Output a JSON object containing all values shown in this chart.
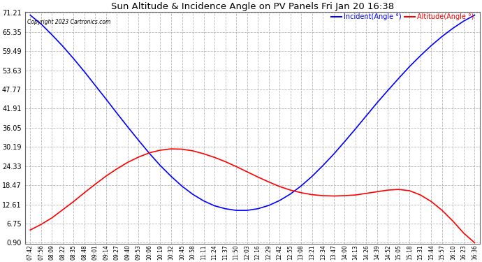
{
  "title": "Sun Altitude & Incidence Angle on PV Panels Fri Jan 20 16:38",
  "copyright": "Copyright 2023 Cartronics.com",
  "legend_incident": "Incident(Angle °)",
  "legend_altitude": "Altitude(Angle °)",
  "plot_bg_color": "#ffffff",
  "grid_color": "#b0b0b0",
  "title_color": "#000000",
  "copyright_color": "#000000",
  "ymin": 0.9,
  "ymax": 71.21,
  "yticks": [
    0.9,
    6.75,
    12.61,
    18.47,
    24.33,
    30.19,
    36.05,
    41.91,
    47.77,
    53.63,
    59.49,
    65.35,
    71.21
  ],
  "time_labels": [
    "07:42",
    "07:56",
    "08:09",
    "08:22",
    "08:35",
    "08:48",
    "09:01",
    "09:14",
    "09:27",
    "09:40",
    "09:53",
    "10:06",
    "10:19",
    "10:32",
    "10:45",
    "10:58",
    "11:11",
    "11:24",
    "11:37",
    "11:50",
    "12:03",
    "12:16",
    "12:29",
    "12:42",
    "12:55",
    "13:08",
    "13:21",
    "13:34",
    "13:47",
    "14:00",
    "14:13",
    "14:26",
    "14:39",
    "14:52",
    "15:05",
    "15:18",
    "15:31",
    "15:44",
    "15:57",
    "16:10",
    "16:23",
    "16:36"
  ],
  "altitude_values": [
    70.5,
    67.8,
    64.5,
    61.0,
    57.2,
    53.2,
    49.0,
    44.8,
    40.5,
    36.3,
    32.2,
    28.2,
    24.5,
    21.2,
    18.2,
    15.7,
    13.7,
    12.2,
    11.3,
    10.8,
    10.8,
    11.3,
    12.3,
    13.8,
    15.8,
    18.3,
    21.2,
    24.5,
    28.0,
    31.8,
    35.7,
    39.7,
    43.7,
    47.5,
    51.2,
    54.8,
    58.1,
    61.2,
    64.0,
    66.5,
    68.7,
    70.5
  ],
  "incident_values": [
    4.8,
    6.5,
    8.5,
    11.0,
    13.5,
    16.2,
    18.8,
    21.3,
    23.5,
    25.5,
    27.1,
    28.4,
    29.2,
    29.6,
    29.5,
    29.0,
    28.1,
    27.0,
    25.7,
    24.2,
    22.6,
    21.0,
    19.5,
    18.1,
    17.0,
    16.2,
    15.6,
    15.3,
    15.2,
    15.3,
    15.5,
    16.0,
    16.5,
    17.0,
    17.2,
    16.8,
    15.5,
    13.5,
    10.8,
    7.5,
    3.8,
    0.9
  ]
}
